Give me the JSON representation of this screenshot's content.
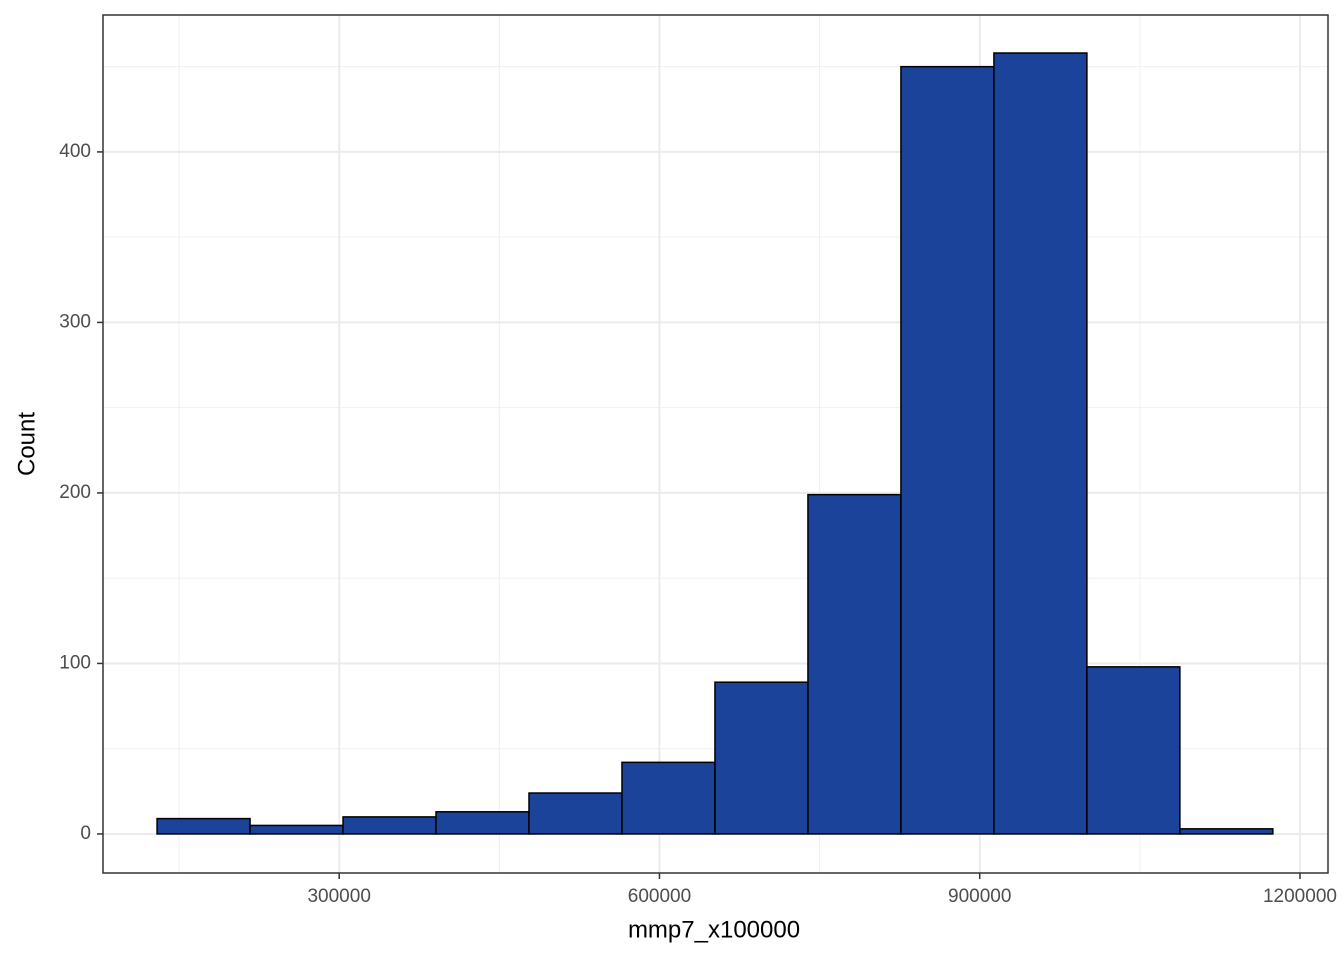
{
  "chart_data": {
    "type": "histogram",
    "x_label": "mmp7_x100000",
    "y_label": "Count",
    "bins": [
      129400,
      216500,
      303600,
      390700,
      477800,
      564900,
      652000,
      739100,
      826200,
      913300,
      1000400,
      1087500,
      1174600
    ],
    "values": [
      9,
      5,
      10,
      13,
      24,
      42,
      89,
      199,
      450,
      458,
      98,
      3
    ],
    "color": "#1a4399",
    "xlim": [
      78750,
      1226250
    ],
    "xticks": [
      300000,
      600000,
      900000,
      1200000
    ],
    "ylim": [
      -22.9,
      480.3
    ],
    "yticks": [
      0,
      100,
      200,
      300,
      400
    ],
    "grid": true,
    "minor_grid": true
  }
}
